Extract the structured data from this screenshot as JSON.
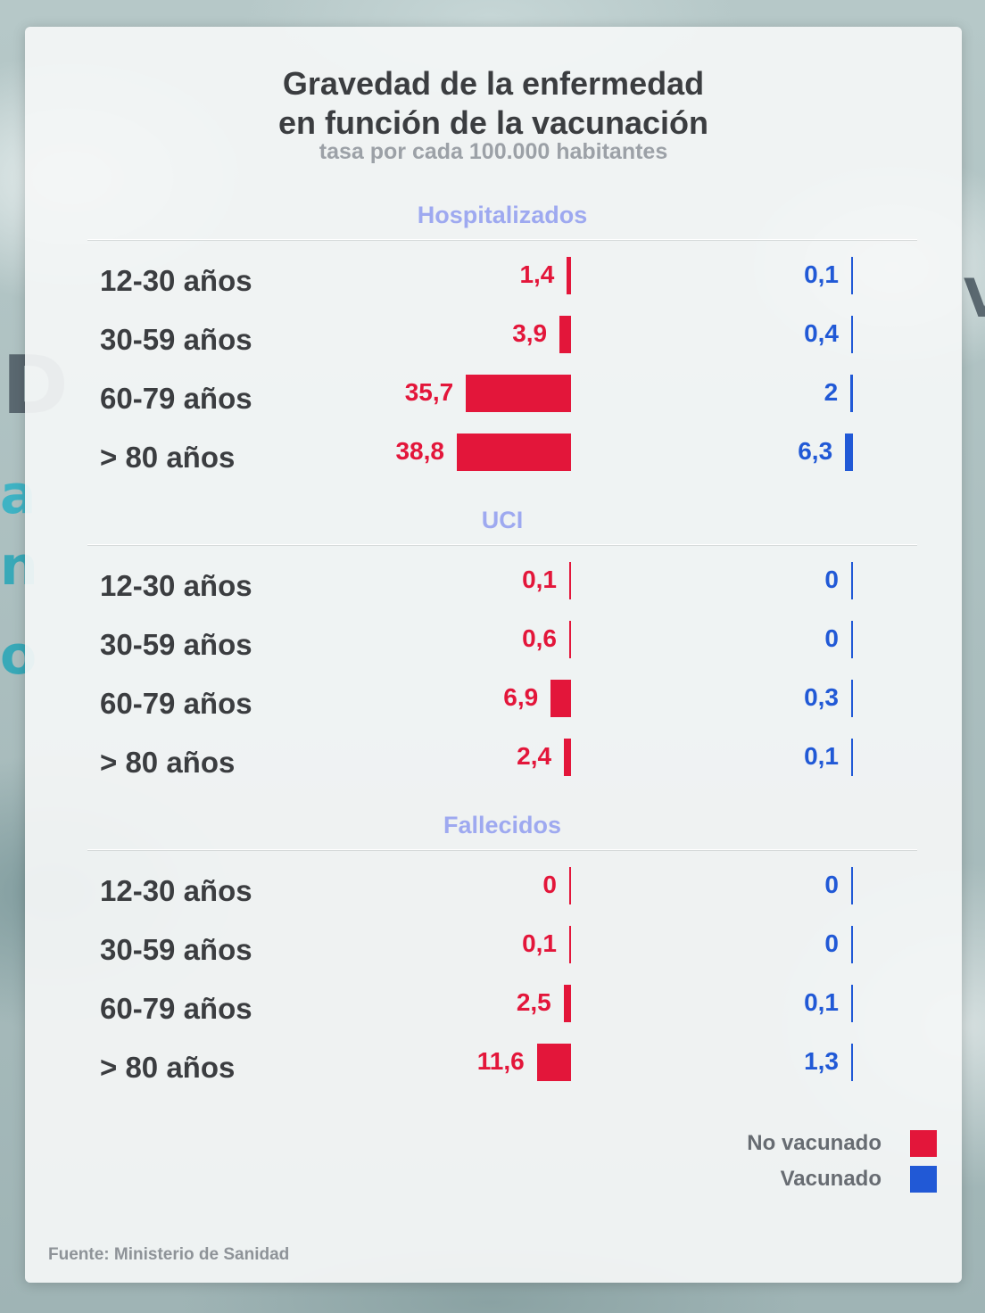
{
  "colors": {
    "no_vacunado": "#e3163a",
    "vacunado": "#2159d6",
    "section_label": "#9ea9f0"
  },
  "header": {
    "title_line1": "Gravedad de la enfermedad",
    "title_line2": "en función de la vacunación",
    "subtitle": "tasa por cada 100.000 habitantes"
  },
  "legend": {
    "no_vacunado": "No vacunado",
    "vacunado": "Vacunado"
  },
  "source": "Fuente: Ministerio de Sanidad",
  "chart_data": {
    "type": "bar",
    "title": "Gravedad de la enfermedad en función de la vacunación",
    "subtitle": "tasa por cada 100.000 habitantes",
    "categories": [
      "12-30 años",
      "30-59 años",
      "60-79 años",
      "> 80 años"
    ],
    "series_names": [
      "No vacunado",
      "Vacunado"
    ],
    "legend_position": "bottom-right",
    "grid": false,
    "panels": [
      {
        "name": "Hospitalizados",
        "no_vacunado": [
          1.4,
          3.9,
          35.7,
          38.8
        ],
        "vacunado": [
          0.1,
          0.4,
          2,
          6.3
        ],
        "no_vacunado_labels": [
          "1,4",
          "3,9",
          "35,7",
          "38,8"
        ],
        "vacunado_labels": [
          "0,1",
          "0,4",
          "2",
          "6,3"
        ]
      },
      {
        "name": "UCI",
        "no_vacunado": [
          0.1,
          0.6,
          6.9,
          2.4
        ],
        "vacunado": [
          0,
          0,
          0.3,
          0.1
        ],
        "no_vacunado_labels": [
          "0,1",
          "0,6",
          "6,9",
          "2,4"
        ],
        "vacunado_labels": [
          "0",
          "0",
          "0,3",
          "0,1"
        ]
      },
      {
        "name": "Fallecidos",
        "no_vacunado": [
          0,
          0.1,
          2.5,
          11.6
        ],
        "vacunado": [
          0,
          0,
          0.1,
          1.3
        ],
        "no_vacunado_labels": [
          "0",
          "0,1",
          "2,5",
          "11,6"
        ],
        "vacunado_labels": [
          "0",
          "0",
          "0,1",
          "1,3"
        ]
      }
    ]
  }
}
